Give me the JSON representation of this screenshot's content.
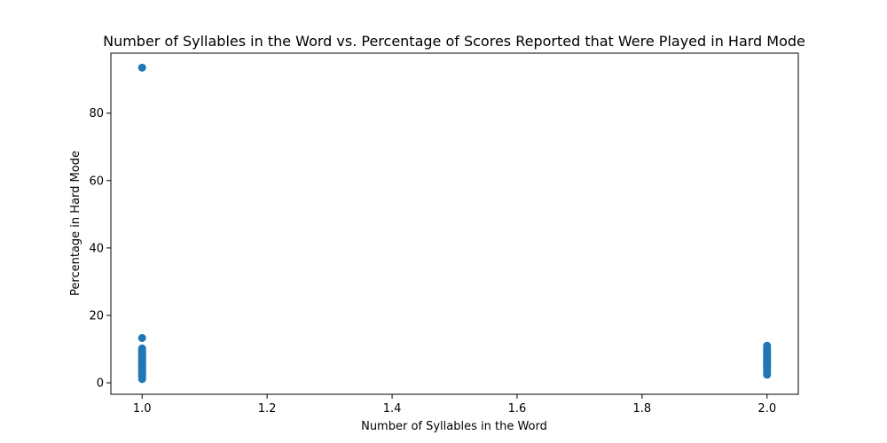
{
  "chart_data": {
    "type": "scatter",
    "title": "Number of Syllables in the Word vs. Percentage of Scores Reported that Were Played in Hard Mode",
    "xlabel": "Number of Syllables in the Word",
    "ylabel": "Percentage in Hard Mode",
    "xlim": [
      0.95,
      2.05
    ],
    "ylim": [
      -3.4,
      97.8
    ],
    "x_ticks": [
      1.0,
      1.2,
      1.4,
      1.6,
      1.8,
      2.0
    ],
    "x_tick_labels": [
      "1.0",
      "1.2",
      "1.4",
      "1.6",
      "1.8",
      "2.0"
    ],
    "y_ticks": [
      0,
      20,
      40,
      60,
      80
    ],
    "y_tick_labels": [
      "0",
      "20",
      "40",
      "60",
      "80"
    ],
    "grid": false,
    "marker_color": "#1f77b4",
    "series": [
      {
        "x": [
          1,
          1,
          1,
          1,
          1,
          1,
          1,
          1,
          1,
          1,
          1,
          1,
          1,
          1,
          1,
          1,
          1,
          1,
          1,
          1,
          1,
          1,
          1,
          1,
          1,
          1,
          1,
          1,
          1,
          1,
          2,
          2,
          2,
          2,
          2,
          2,
          2,
          2,
          2,
          2,
          2,
          2,
          2,
          2,
          2,
          2,
          2,
          2,
          2,
          2
        ],
        "y": [
          93.5,
          13.3,
          10.2,
          9.8,
          9.4,
          9.0,
          8.6,
          8.3,
          8.0,
          7.7,
          7.4,
          7.1,
          6.8,
          6.5,
          6.2,
          5.9,
          5.6,
          5.3,
          5.0,
          4.7,
          4.4,
          4.1,
          3.8,
          3.5,
          3.2,
          2.9,
          2.6,
          2.2,
          1.8,
          1.1,
          11.0,
          10.3,
          9.8,
          9.4,
          9.0,
          8.6,
          8.2,
          7.8,
          7.4,
          7.0,
          6.6,
          6.2,
          5.8,
          5.4,
          5.0,
          4.6,
          4.2,
          3.6,
          3.0,
          2.4
        ]
      }
    ]
  }
}
